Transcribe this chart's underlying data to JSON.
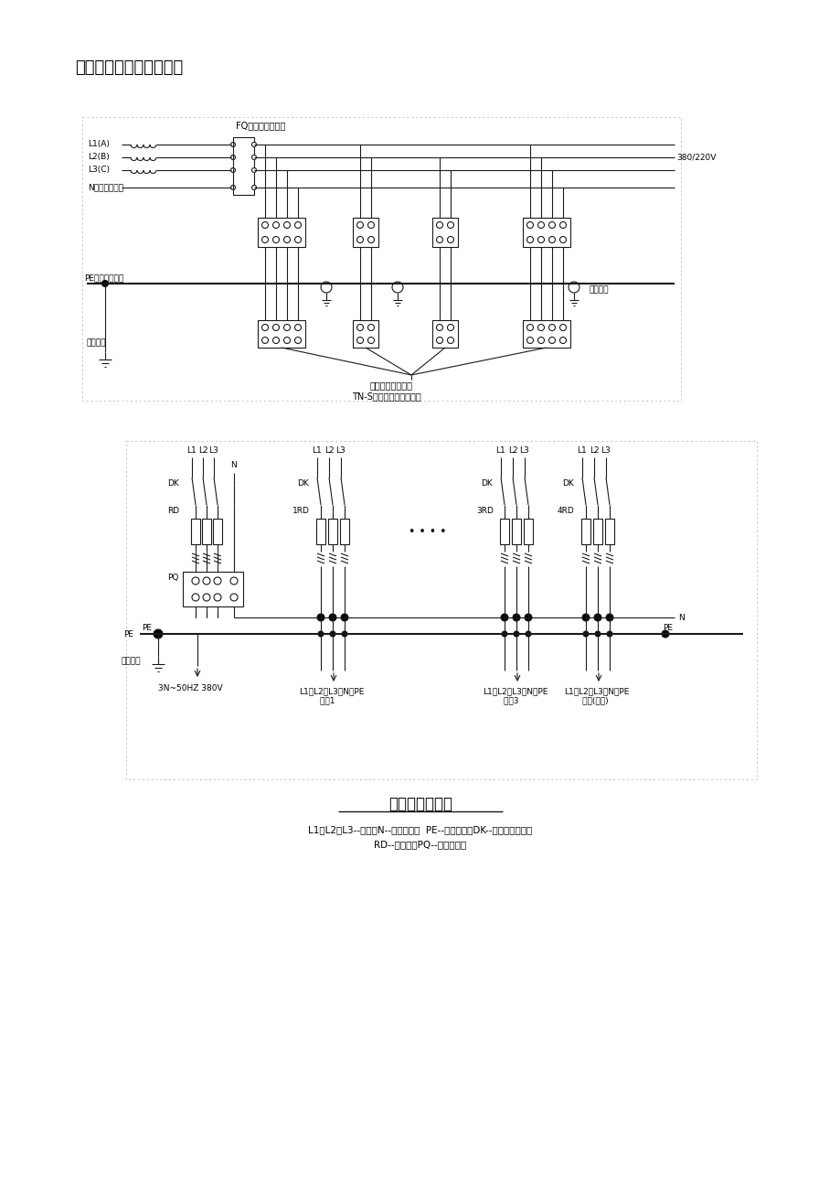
{
  "page_title": "至各分配电箱和开关箱。",
  "diagram1_title": "TN-S配电保护系统示意图",
  "diagram1_subtitle": "电气设备金属外壳",
  "diagram2_title": "总配电屏接线图",
  "diagram2_legend1": "L1、L2、L3--相线；N--工作零线；  PE--保护零线；DK--电源隔离开关；",
  "diagram2_legend2": "RD--熔断器；PQ--漏电保护器",
  "voltage_label": "380/220V",
  "fq_label": "FQ（漏电保护器）",
  "l1_label": "L1(A)",
  "l2_label": "L2(B)",
  "l3_label": "L3(C)",
  "n_label": "N（工作零线）",
  "pe_label1": "PE（保护零线）",
  "work_ground_label": "工作接地",
  "repeat_ground_label": "重复接地",
  "bg_color": "#ffffff",
  "line_color": "#1a1a1a"
}
